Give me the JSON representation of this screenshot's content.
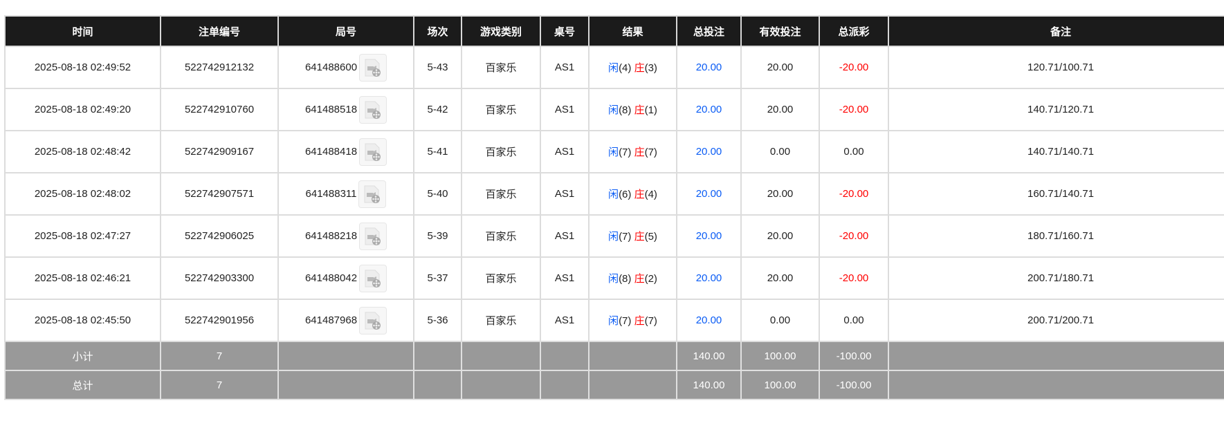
{
  "headers": [
    "时间",
    "注单编号",
    "局号",
    "场次",
    "游戏类别",
    "桌号",
    "结果",
    "总投注",
    "有效投注",
    "总派彩",
    "备注"
  ],
  "result_labels": {
    "player": "闲",
    "banker": "庄"
  },
  "colors": {
    "header_bg": "#1b1b1b",
    "footer_bg": "#999999",
    "player": "#0a5cf5",
    "banker": "#ff0000",
    "negative": "#ff0000"
  },
  "rows": [
    {
      "time": "2025-08-18 02:49:52",
      "bet_id": "522742912132",
      "round": "641488600",
      "shoe": "5-43",
      "game": "百家乐",
      "table": "AS1",
      "player": "(4)",
      "banker": "(3)",
      "total_bet": "20.00",
      "valid_bet": "20.00",
      "payout": "-20.00",
      "note": "120.71/100.71"
    },
    {
      "time": "2025-08-18 02:49:20",
      "bet_id": "522742910760",
      "round": "641488518",
      "shoe": "5-42",
      "game": "百家乐",
      "table": "AS1",
      "player": "(8)",
      "banker": "(1)",
      "total_bet": "20.00",
      "valid_bet": "20.00",
      "payout": "-20.00",
      "note": "140.71/120.71"
    },
    {
      "time": "2025-08-18 02:48:42",
      "bet_id": "522742909167",
      "round": "641488418",
      "shoe": "5-41",
      "game": "百家乐",
      "table": "AS1",
      "player": "(7)",
      "banker": "(7)",
      "total_bet": "20.00",
      "valid_bet": "0.00",
      "payout": "0.00",
      "note": "140.71/140.71"
    },
    {
      "time": "2025-08-18 02:48:02",
      "bet_id": "522742907571",
      "round": "641488311",
      "shoe": "5-40",
      "game": "百家乐",
      "table": "AS1",
      "player": "(6)",
      "banker": "(4)",
      "total_bet": "20.00",
      "valid_bet": "20.00",
      "payout": "-20.00",
      "note": "160.71/140.71"
    },
    {
      "time": "2025-08-18 02:47:27",
      "bet_id": "522742906025",
      "round": "641488218",
      "shoe": "5-39",
      "game": "百家乐",
      "table": "AS1",
      "player": "(7)",
      "banker": "(5)",
      "total_bet": "20.00",
      "valid_bet": "20.00",
      "payout": "-20.00",
      "note": "180.71/160.71"
    },
    {
      "time": "2025-08-18 02:46:21",
      "bet_id": "522742903300",
      "round": "641488042",
      "shoe": "5-37",
      "game": "百家乐",
      "table": "AS1",
      "player": "(8)",
      "banker": "(2)",
      "total_bet": "20.00",
      "valid_bet": "20.00",
      "payout": "-20.00",
      "note": "200.71/180.71"
    },
    {
      "time": "2025-08-18 02:45:50",
      "bet_id": "522742901956",
      "round": "641487968",
      "shoe": "5-36",
      "game": "百家乐",
      "table": "AS1",
      "player": "(7)",
      "banker": "(7)",
      "total_bet": "20.00",
      "valid_bet": "0.00",
      "payout": "0.00",
      "note": "200.71/200.71"
    }
  ],
  "footer": [
    {
      "label": "小计",
      "count": "7",
      "total_bet": "140.00",
      "valid_bet": "100.00",
      "payout": "-100.00"
    },
    {
      "label": "总计",
      "count": "7",
      "total_bet": "140.00",
      "valid_bet": "100.00",
      "payout": "-100.00"
    }
  ]
}
